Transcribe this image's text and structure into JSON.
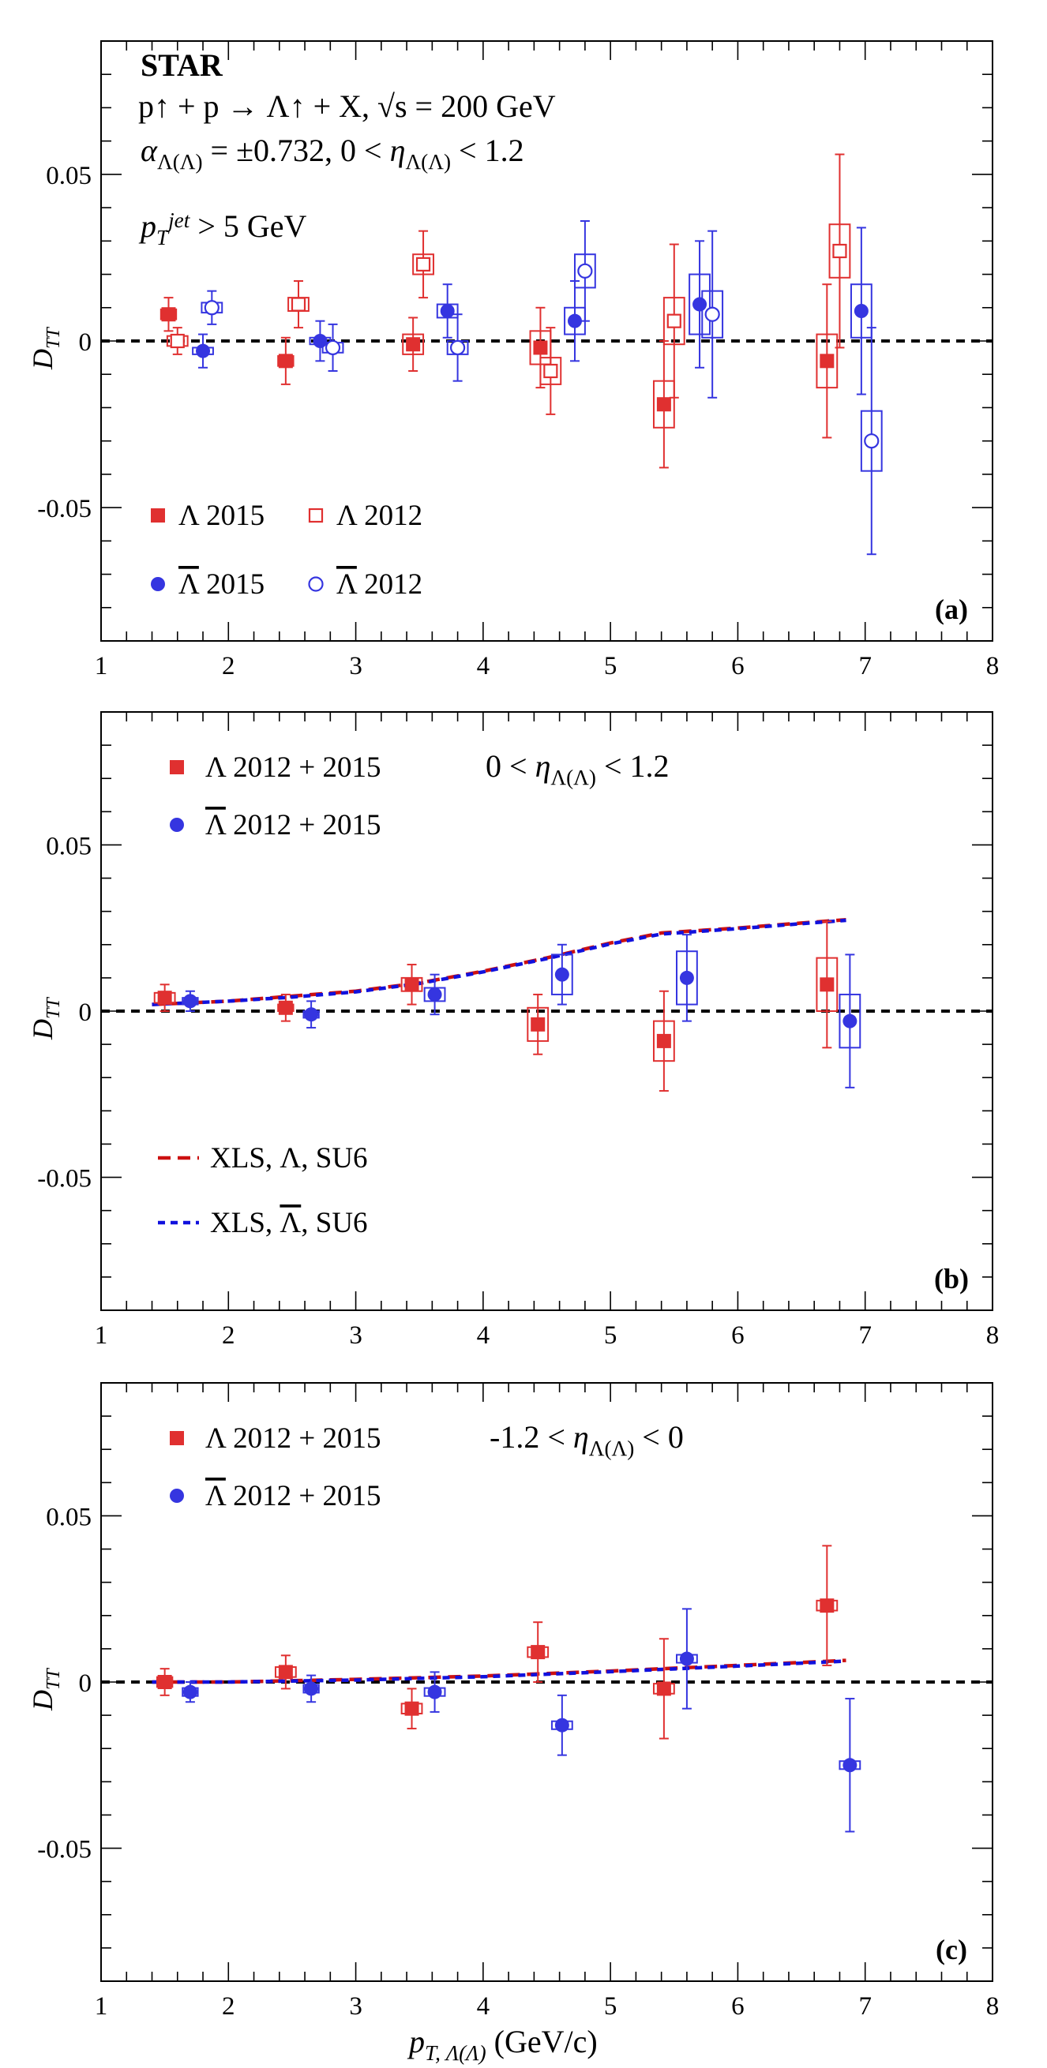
{
  "figure": {
    "xlabel_main": "p",
    "xlabel_sub": "T, Λ(Λ)",
    "xlabel_units": "(GeV/c)"
  },
  "chart_data": [
    {
      "type": "scatter",
      "panel_tag": "(a)",
      "ylabel": "D",
      "ylabel_sub": "TT",
      "xlim": [
        1,
        8
      ],
      "ylim": [
        -0.09,
        0.09
      ],
      "x_ticks": [
        "1",
        "2",
        "3",
        "4",
        "5",
        "6",
        "7",
        "8"
      ],
      "y_ticks": [
        "-0.05",
        "0",
        "0.05"
      ],
      "zero_line": true,
      "annotations": {
        "experiment": "STAR",
        "reaction": "p↑ + p → Λ↑ + X,  √s = 200 GeV",
        "alpha": "α",
        "alpha_sub": "Λ(Λ)",
        "alpha_rest": " = ±0.732, 0 < ",
        "eta": "η",
        "eta_sub": "Λ(Λ)",
        "eta_rest": " < 1.2",
        "pt_cut": "p",
        "pt_sub": "T",
        "pt_sup": "jet",
        "pt_rest": " > 5 GeV"
      },
      "legend": [
        {
          "label": "Λ 2015",
          "marker": "square-filled",
          "color": "#e03030"
        },
        {
          "label": "Λ 2012",
          "marker": "square-open",
          "color": "#e03030"
        },
        {
          "label": "Λ 2015",
          "marker": "circle-filled",
          "color": "#3535e0",
          "overline": true
        },
        {
          "label": "Λ 2012",
          "marker": "circle-open",
          "color": "#3535e0",
          "overline": true
        }
      ],
      "series": [
        {
          "name": "Λ 2015",
          "marker": "square-filled",
          "color": "#e03030",
          "x": [
            1.53,
            2.45,
            3.45,
            4.45,
            5.42,
            6.7
          ],
          "y": [
            0.008,
            -0.006,
            -0.001,
            -0.002,
            -0.019,
            -0.006
          ],
          "err": [
            0.005,
            0.007,
            0.008,
            0.012,
            0.019,
            0.023
          ],
          "sys_x": [
            0.06,
            0.06,
            0.08,
            0.08,
            0.08,
            0.08
          ],
          "sys_y": [
            0.0015,
            0.0015,
            0.003,
            0.005,
            0.007,
            0.008
          ]
        },
        {
          "name": "Λ 2012",
          "marker": "square-open",
          "color": "#e03030",
          "x": [
            1.6,
            2.55,
            3.53,
            4.53,
            5.5,
            6.8
          ],
          "y": [
            0.0,
            0.011,
            0.023,
            -0.009,
            0.006,
            0.027
          ],
          "err": [
            0.004,
            0.007,
            0.01,
            0.013,
            0.023,
            0.029
          ],
          "sys_x": [
            0.08,
            0.08,
            0.08,
            0.08,
            0.08,
            0.08
          ],
          "sys_y": [
            0.0015,
            0.002,
            0.003,
            0.004,
            0.007,
            0.008
          ]
        },
        {
          "name": "Λ 2015",
          "marker": "circle-filled",
          "color": "#3535e0",
          "x": [
            1.8,
            2.72,
            3.72,
            4.72,
            5.7,
            6.97
          ],
          "y": [
            -0.003,
            0.0,
            0.009,
            0.006,
            0.011,
            0.009
          ],
          "err": [
            0.005,
            0.006,
            0.008,
            0.012,
            0.019,
            0.025
          ],
          "sys_x": [
            0.08,
            0.08,
            0.08,
            0.08,
            0.08,
            0.08
          ],
          "sys_y": [
            0.001,
            0.001,
            0.002,
            0.004,
            0.009,
            0.008
          ]
        },
        {
          "name": "Λ 2012",
          "marker": "circle-open",
          "color": "#3535e0",
          "x": [
            1.87,
            2.82,
            3.8,
            4.8,
            5.8,
            7.05
          ],
          "y": [
            0.01,
            -0.002,
            -0.002,
            0.021,
            0.008,
            -0.03
          ],
          "err": [
            0.005,
            0.007,
            0.01,
            0.015,
            0.025,
            0.034
          ],
          "sys_x": [
            0.08,
            0.08,
            0.08,
            0.08,
            0.08,
            0.08
          ],
          "sys_y": [
            0.0015,
            0.0015,
            0.002,
            0.005,
            0.007,
            0.009
          ]
        }
      ]
    },
    {
      "type": "scatter",
      "panel_tag": "(b)",
      "ylabel": "D",
      "ylabel_sub": "TT",
      "xlim": [
        1,
        8
      ],
      "ylim": [
        -0.09,
        0.09
      ],
      "x_ticks": [
        "1",
        "2",
        "3",
        "4",
        "5",
        "6",
        "7",
        "8"
      ],
      "y_ticks": [
        "-0.05",
        "0",
        "0.05"
      ],
      "zero_line": true,
      "annotations": {
        "eta_prefix": "0 < ",
        "eta": "η",
        "eta_sub": "Λ(Λ)",
        "eta_rest": " < 1.2"
      },
      "legend": [
        {
          "label": "Λ 2012 + 2015",
          "marker": "square-filled",
          "color": "#e03030"
        },
        {
          "label": "Λ 2012 + 2015",
          "marker": "circle-filled",
          "color": "#3535e0",
          "overline": true
        },
        {
          "label": "XLS, Λ, SU6",
          "marker": "dash",
          "color": "#cc1111"
        },
        {
          "label": "XLS, Λ, SU6",
          "marker": "dot",
          "color": "#1111dd",
          "overline": true
        }
      ],
      "series": [
        {
          "name": "Λ 2012 + 2015",
          "marker": "square-filled",
          "color": "#e03030",
          "x": [
            1.5,
            2.45,
            3.44,
            4.43,
            5.42,
            6.7
          ],
          "y": [
            0.004,
            0.001,
            0.008,
            -0.004,
            -0.009,
            0.008
          ],
          "err": [
            0.004,
            0.004,
            0.006,
            0.009,
            0.015,
            0.019
          ],
          "sys_x": [
            0.08,
            0.06,
            0.08,
            0.08,
            0.08,
            0.08
          ],
          "sys_y": [
            0.0015,
            0.001,
            0.002,
            0.005,
            0.006,
            0.008
          ]
        },
        {
          "name": "Λ 2012 + 2015",
          "marker": "circle-filled",
          "color": "#3535e0",
          "x": [
            1.7,
            2.65,
            3.62,
            4.62,
            5.6,
            6.88
          ],
          "y": [
            0.003,
            -0.001,
            0.005,
            0.011,
            0.01,
            -0.003
          ],
          "err": [
            0.003,
            0.004,
            0.006,
            0.009,
            0.013,
            0.02
          ],
          "sys_x": [
            0.06,
            0.06,
            0.08,
            0.08,
            0.08,
            0.08
          ],
          "sys_y": [
            0.001,
            0.001,
            0.002,
            0.006,
            0.008,
            0.008
          ]
        },
        {
          "name": "XLS, Λ, SU6",
          "line": "dash",
          "color": "#cc1111",
          "x": [
            1.4,
            2.0,
            2.5,
            3.0,
            3.5,
            4.0,
            4.5,
            5.0,
            5.4,
            6.0,
            6.5,
            6.85
          ],
          "y": [
            0.002,
            0.003,
            0.0045,
            0.006,
            0.0085,
            0.012,
            0.016,
            0.0205,
            0.0235,
            0.025,
            0.0265,
            0.0275
          ]
        },
        {
          "name": "XLS, Λ, SU6",
          "line": "dot",
          "color": "#1111dd",
          "x": [
            1.4,
            2.0,
            2.5,
            3.0,
            3.5,
            4.0,
            4.5,
            5.0,
            5.4,
            6.0,
            6.5,
            6.85
          ],
          "y": [
            0.002,
            0.003,
            0.0042,
            0.0058,
            0.0083,
            0.0118,
            0.0158,
            0.0202,
            0.0232,
            0.0248,
            0.0263,
            0.0273
          ]
        }
      ]
    },
    {
      "type": "scatter",
      "panel_tag": "(c)",
      "ylabel": "D",
      "ylabel_sub": "TT",
      "xlim": [
        1,
        8
      ],
      "ylim": [
        -0.09,
        0.09
      ],
      "x_ticks": [
        "1",
        "2",
        "3",
        "4",
        "5",
        "6",
        "7",
        "8"
      ],
      "y_ticks": [
        "-0.05",
        "0",
        "0.05"
      ],
      "zero_line": true,
      "annotations": {
        "eta_prefix": "-1.2 < ",
        "eta": "η",
        "eta_sub": "Λ(Λ)",
        "eta_rest": " < 0"
      },
      "legend": [
        {
          "label": "Λ 2012 + 2015",
          "marker": "square-filled",
          "color": "#e03030"
        },
        {
          "label": "Λ 2012 + 2015",
          "marker": "circle-filled",
          "color": "#3535e0",
          "overline": true
        }
      ],
      "series": [
        {
          "name": "Λ 2012 + 2015",
          "marker": "square-filled",
          "color": "#e03030",
          "x": [
            1.5,
            2.45,
            3.44,
            4.43,
            5.42,
            6.7
          ],
          "y": [
            0.0,
            0.003,
            -0.008,
            0.009,
            -0.002,
            0.023
          ],
          "err": [
            0.004,
            0.005,
            0.006,
            0.009,
            0.015,
            0.018
          ],
          "sys_x": [
            0.06,
            0.08,
            0.08,
            0.08,
            0.08,
            0.08
          ],
          "sys_y": [
            0.0015,
            0.0015,
            0.0015,
            0.0015,
            0.0015,
            0.0015
          ]
        },
        {
          "name": "Λ 2012 + 2015",
          "marker": "circle-filled",
          "color": "#3535e0",
          "x": [
            1.7,
            2.65,
            3.62,
            4.62,
            5.6,
            6.88
          ],
          "y": [
            -0.003,
            -0.002,
            -0.003,
            -0.013,
            0.007,
            -0.025
          ],
          "err": [
            0.003,
            0.004,
            0.006,
            0.009,
            0.015,
            0.02
          ],
          "sys_x": [
            0.06,
            0.06,
            0.08,
            0.08,
            0.08,
            0.08
          ],
          "sys_y": [
            0.0012,
            0.0012,
            0.0012,
            0.0012,
            0.0012,
            0.0012
          ]
        },
        {
          "name": "XLS, Λ, SU6",
          "line": "dash",
          "color": "#cc1111",
          "x": [
            1.4,
            2.0,
            3.0,
            4.0,
            5.0,
            6.0,
            6.85
          ],
          "y": [
            0.0,
            0.0,
            0.0008,
            0.0018,
            0.0033,
            0.005,
            0.0065
          ]
        },
        {
          "name": "XLS, Λ, SU6",
          "line": "dot",
          "color": "#1111dd",
          "x": [
            1.4,
            2.0,
            3.0,
            4.0,
            5.0,
            6.0,
            6.85
          ],
          "y": [
            0.0,
            0.0,
            0.0006,
            0.0016,
            0.0031,
            0.0048,
            0.0063
          ]
        }
      ]
    }
  ]
}
